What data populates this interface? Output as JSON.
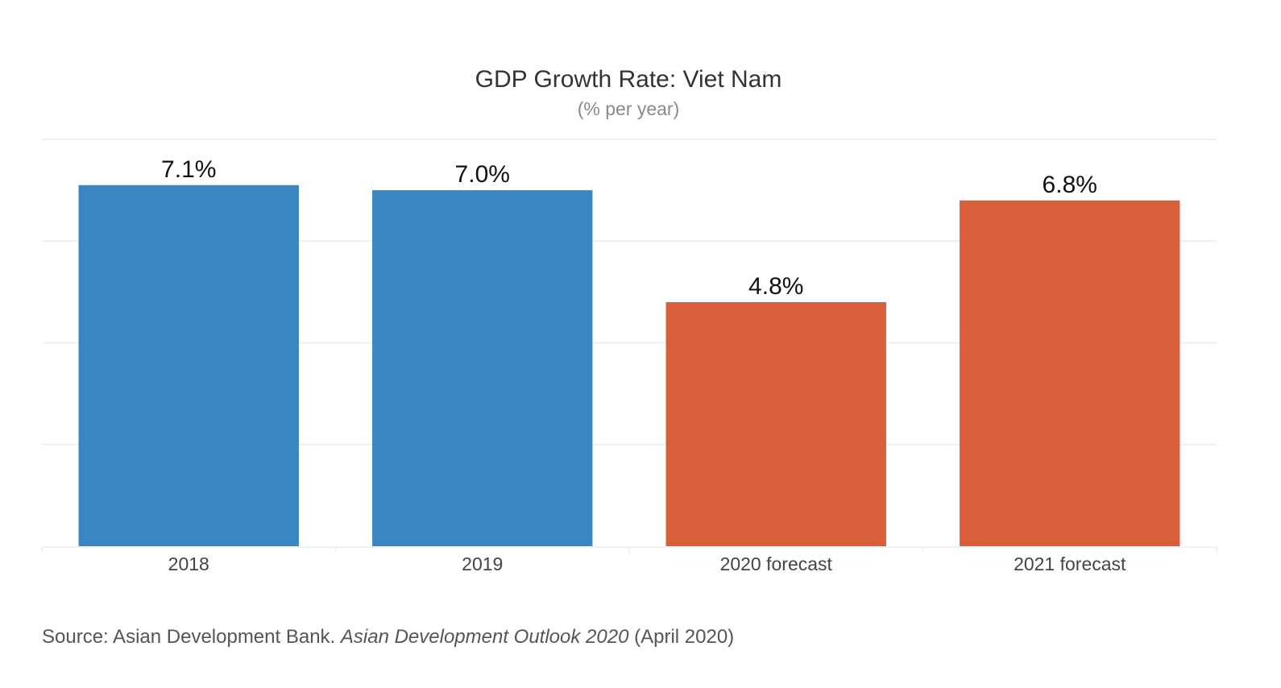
{
  "chart_data": {
    "type": "bar",
    "title": "GDP Growth Rate: Viet Nam",
    "subtitle": "(% per year)",
    "categories": [
      "2018",
      "2019",
      "2020 forecast",
      "2021 forecast"
    ],
    "values": [
      7.1,
      7.0,
      4.8,
      6.8
    ],
    "value_labels": [
      "7.1%",
      "7.0%",
      "4.8%",
      "6.8%"
    ],
    "bar_colors": [
      "#3b86c0",
      "#3b86c0",
      "#d95f3b",
      "#d95f3b"
    ],
    "ylim": [
      0,
      8
    ],
    "grid": true,
    "xlabel": "",
    "ylabel": ""
  },
  "source": {
    "prefix": "Source: Asian Development Bank. ",
    "publication": "Asian Development Outlook 2020",
    "suffix": " (April 2020)"
  }
}
